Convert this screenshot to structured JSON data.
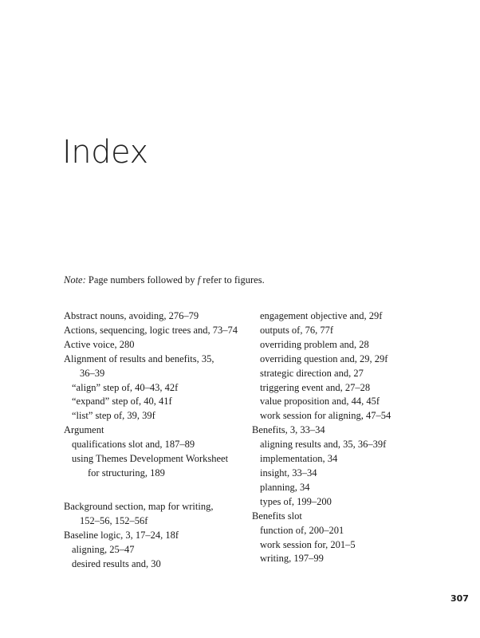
{
  "title": "Index",
  "note": {
    "label": "Note:",
    "text": " Page numbers followed by ",
    "f": "f",
    "text_end": " refer to figures."
  },
  "left_column": [
    {
      "text": "Abstract nouns, avoiding, 276–79",
      "level": 0
    },
    {
      "text": "Actions, sequencing, logic trees and, 73–74",
      "level": 0
    },
    {
      "text": "Active voice, 280",
      "level": 0
    },
    {
      "text": "Alignment of results and benefits, 35,",
      "level": 0
    },
    {
      "text": "36–39",
      "level": "cont"
    },
    {
      "text": "“align” step of, 40–43, 42f",
      "level": 1
    },
    {
      "text": "“expand” step of, 40, 41f",
      "level": 1
    },
    {
      "text": "“list” step of, 39, 39f",
      "level": 1
    },
    {
      "text": "Argument",
      "level": 0
    },
    {
      "text": "qualifications slot and, 187–89",
      "level": 1
    },
    {
      "text": "using Themes Development Worksheet",
      "level": 1
    },
    {
      "text": "for structuring, 189",
      "level": 2
    },
    {
      "text": "",
      "level": "gap"
    },
    {
      "text": "Background section, map for writing,",
      "level": 0
    },
    {
      "text": "152–56, 152–56f",
      "level": "cont"
    },
    {
      "text": "Baseline logic, 3, 17–24, 18f",
      "level": 0
    },
    {
      "text": "aligning, 25–47",
      "level": 1
    },
    {
      "text": "desired results and, 30",
      "level": 1
    }
  ],
  "right_column": [
    {
      "text": "engagement objective and, 29f",
      "level": 1
    },
    {
      "text": "outputs of, 76, 77f",
      "level": 1
    },
    {
      "text": "overriding problem and, 28",
      "level": 1
    },
    {
      "text": "overriding question and, 29, 29f",
      "level": 1
    },
    {
      "text": "strategic direction and, 27",
      "level": 1
    },
    {
      "text": "triggering event and, 27–28",
      "level": 1
    },
    {
      "text": "value proposition and, 44, 45f",
      "level": 1
    },
    {
      "text": "work session for aligning, 47–54",
      "level": 1
    },
    {
      "text": "Benefits, 3, 33–34",
      "level": 0
    },
    {
      "text": "aligning results and, 35, 36–39f",
      "level": 1
    },
    {
      "text": "implementation, 34",
      "level": 1
    },
    {
      "text": "insight, 33–34",
      "level": 1
    },
    {
      "text": "planning, 34",
      "level": 1
    },
    {
      "text": "types of, 199–200",
      "level": 1
    },
    {
      "text": "Benefits slot",
      "level": 0
    },
    {
      "text": "function of, 200–201",
      "level": 1
    },
    {
      "text": "work session for, 201–5",
      "level": 1
    },
    {
      "text": "writing, 197–99",
      "level": 1
    }
  ],
  "page_number": "307"
}
